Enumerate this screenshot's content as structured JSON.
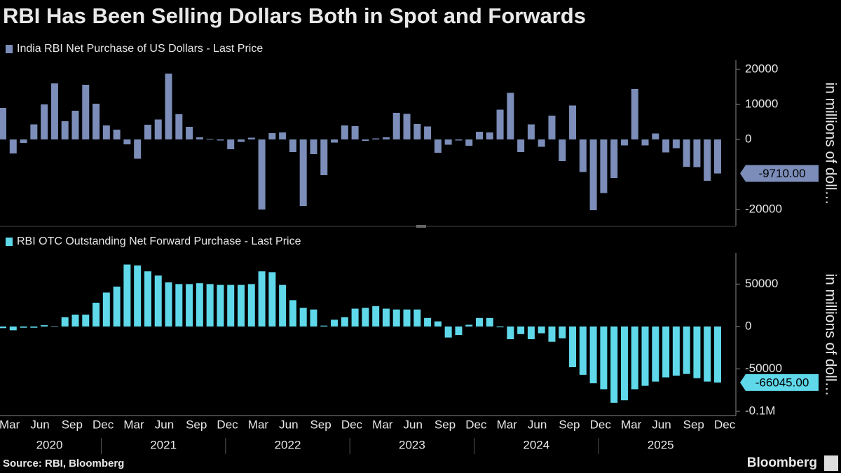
{
  "title": "RBI Has Been Selling Dollars Both in Spot and Forwards",
  "source": "Source: RBI, Bloomberg",
  "brand": "Bloomberg",
  "chart_data": [
    {
      "type": "bar",
      "series": [
        {
          "name": "India RBI Net Purchase of US Dollars - Last Price",
          "color": "#7b8db8",
          "values": [
            9000,
            -4000,
            -1000,
            4300,
            10000,
            16000,
            5200,
            8200,
            15600,
            10200,
            4000,
            2800,
            -1400,
            -5500,
            4200,
            5700,
            18800,
            7200,
            3600,
            600,
            200,
            -300,
            -2800,
            -700,
            500,
            -20000,
            1800,
            2000,
            -3600,
            -19000,
            -4200,
            -10200,
            -900,
            4000,
            3800,
            -400,
            300,
            600,
            7600,
            7300,
            4400,
            3700,
            -3800,
            -1500,
            -300,
            -1800,
            2200,
            2000,
            8500,
            13300,
            -3600,
            4300,
            -2100,
            6800,
            -6200,
            9700,
            -9300,
            -20200,
            -15300,
            -11000,
            -1700,
            14400,
            -1700,
            1700,
            -3700,
            -2500,
            -7800,
            -7900,
            -11800,
            -9710
          ],
          "value_labels": [
            null,
            null,
            null,
            null,
            null,
            null,
            null,
            null,
            null,
            null,
            null,
            null,
            null,
            null,
            null,
            null,
            null,
            null,
            null,
            null,
            null,
            null,
            null,
            null,
            null,
            null,
            null,
            null,
            null,
            null,
            null,
            null,
            null,
            null,
            null,
            null,
            null,
            null,
            null,
            null,
            null,
            null,
            null,
            null,
            null,
            null,
            null,
            null,
            null,
            null,
            null,
            null,
            null,
            null,
            null,
            null,
            null,
            null,
            null,
            null,
            null,
            null,
            null,
            null,
            null,
            null,
            null,
            null,
            null,
            "-9710.00"
          ]
        }
      ],
      "ylabel": "in millions of doll…",
      "ylim": [
        -24600,
        22200
      ],
      "yticks": [
        -20000,
        0,
        10000,
        20000
      ]
    },
    {
      "type": "bar",
      "categories": [
        "Mar",
        null,
        null,
        "Jun",
        null,
        null,
        "Sep",
        null,
        null,
        "Dec",
        null,
        null,
        "Mar",
        null,
        null,
        "Jun",
        null,
        null,
        "Sep",
        null,
        null,
        "Dec",
        null,
        null,
        "Mar",
        null,
        null,
        "Jun",
        null,
        null,
        "Sep",
        null,
        null,
        "Dec",
        null,
        null,
        "Mar",
        null,
        null,
        "Jun",
        null,
        null,
        "Sep",
        null,
        null,
        "Dec",
        null,
        null,
        "Mar",
        null,
        null,
        "Jun",
        null,
        null,
        "Sep",
        null,
        null,
        "Dec",
        null,
        null,
        "Mar",
        null,
        null,
        "Jun",
        null,
        null,
        "Sep",
        null,
        null,
        "Dec"
      ],
      "years": [
        "2020",
        "2021",
        "2022",
        "2023",
        "2024",
        "2025"
      ],
      "series": [
        {
          "name": "RBI OTC Outstanding Net Forward Purchase - Last Price",
          "color": "#5fd8ea",
          "values": [
            -2000,
            -4500,
            -1500,
            -1500,
            1500,
            500,
            11000,
            14000,
            14000,
            28000,
            40000,
            47000,
            73000,
            72000,
            65000,
            60000,
            52000,
            50000,
            50000,
            51000,
            50000,
            49000,
            49000,
            49000,
            50000,
            65000,
            64000,
            49000,
            31000,
            22000,
            20000,
            1000,
            8000,
            11000,
            21000,
            22000,
            24000,
            21000,
            20000,
            20000,
            20000,
            10000,
            6000,
            -13000,
            -10000,
            2000,
            10000,
            10000,
            -1000,
            -15000,
            -9000,
            -15000,
            -8000,
            -18000,
            -14000,
            -48000,
            -57000,
            -67000,
            -74000,
            -90000,
            -87000,
            -74000,
            -70000,
            -65000,
            -60000,
            -58000,
            -56000,
            -61000,
            -65000,
            -66045
          ],
          "value_labels": [
            null,
            null,
            null,
            null,
            null,
            null,
            null,
            null,
            null,
            null,
            null,
            null,
            null,
            null,
            null,
            null,
            null,
            null,
            null,
            null,
            null,
            null,
            null,
            null,
            null,
            null,
            null,
            null,
            null,
            null,
            null,
            null,
            null,
            null,
            null,
            null,
            null,
            null,
            null,
            null,
            null,
            null,
            null,
            null,
            null,
            null,
            null,
            null,
            null,
            null,
            null,
            null,
            null,
            null,
            null,
            null,
            null,
            null,
            null,
            null,
            null,
            null,
            null,
            null,
            null,
            null,
            null,
            null,
            null,
            "-66045.00"
          ]
        }
      ],
      "ylabel": "in millions of doll…",
      "ylim": [
        -105000,
        85000
      ],
      "yticks": [
        {
          "value": -100000,
          "label": "-0.1M"
        },
        -50000,
        0,
        50000
      ]
    }
  ]
}
